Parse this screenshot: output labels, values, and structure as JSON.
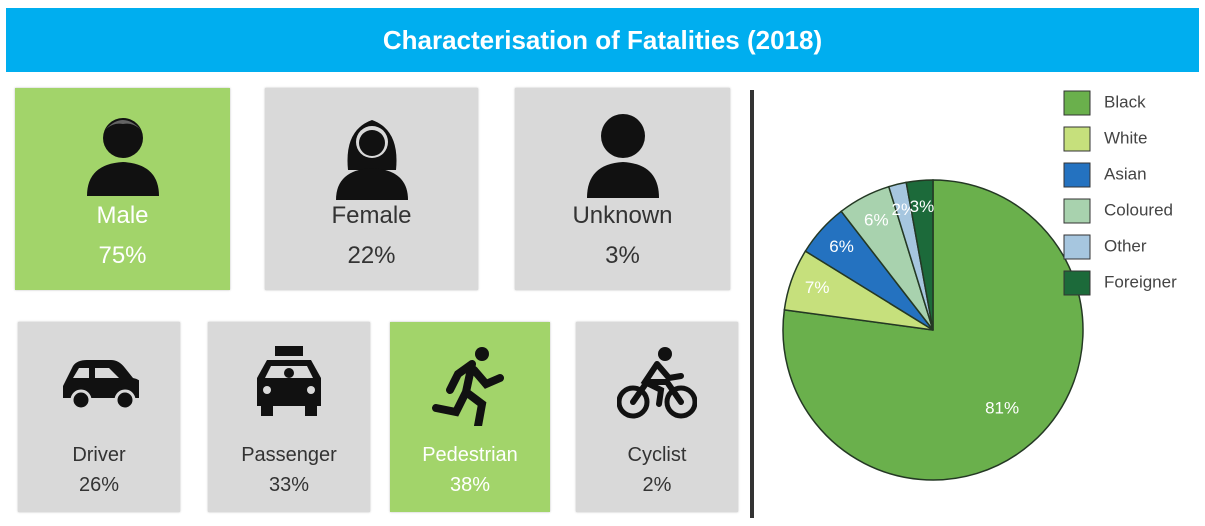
{
  "title": "Characterisation of Fatalities (2018)",
  "gender": [
    {
      "label": "Male",
      "value": "75%",
      "highlight": true
    },
    {
      "label": "Female",
      "value": "22%",
      "highlight": false
    },
    {
      "label": "Unknown",
      "value": "3%",
      "highlight": false
    }
  ],
  "road_users": [
    {
      "label": "Driver",
      "value": "26%",
      "highlight": false
    },
    {
      "label": "Passenger",
      "value": "33%",
      "highlight": false
    },
    {
      "label": "Pedestrian",
      "value": "38%",
      "highlight": true
    },
    {
      "label": "Cyclist",
      "value": "2%",
      "highlight": false
    }
  ],
  "chart_data": {
    "type": "pie",
    "categories": [
      "Black",
      "White",
      "Asian",
      "Coloured",
      "Other",
      "Foreigner"
    ],
    "values": [
      81,
      7,
      6,
      6,
      2,
      3
    ],
    "value_labels": [
      "81%",
      "7%",
      "6%",
      "6%",
      "2%",
      "3%"
    ],
    "colors": [
      "#6ab04c",
      "#c6e07c",
      "#2472c0",
      "#a8d2ae",
      "#a6c6df",
      "#1c6a3a"
    ],
    "legend": "top-right"
  }
}
